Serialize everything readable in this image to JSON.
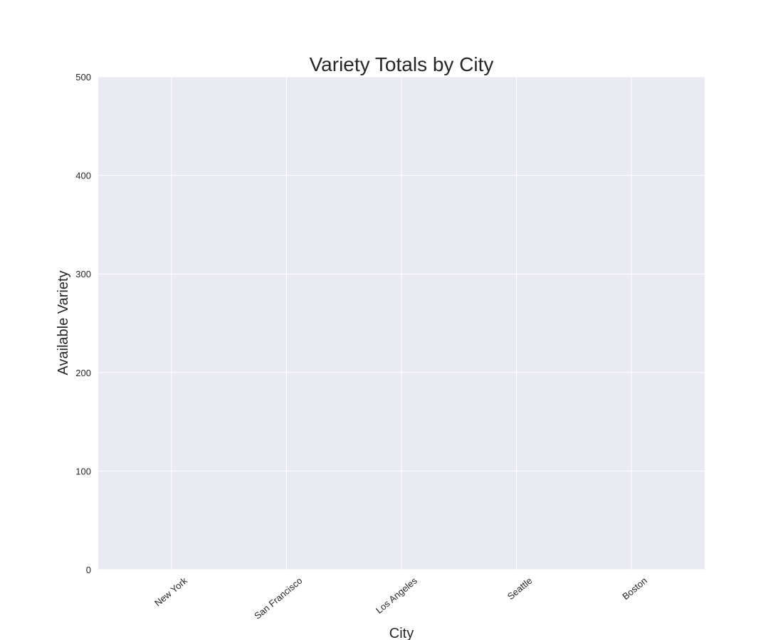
{
  "chart_data": {
    "type": "bar",
    "title": "Variety Totals by City",
    "xlabel": "City",
    "ylabel": "Available Variety",
    "categories": [
      "New York",
      "San Francisco",
      "Los Angeles",
      "Seattle",
      "Boston"
    ],
    "values": [
      0,
      0,
      0,
      0,
      0
    ],
    "ylim": [
      0,
      500
    ],
    "yticks": [
      0,
      100,
      200,
      300,
      400,
      500
    ],
    "grid": true,
    "legend": "none",
    "colors": {
      "plot_background": "#eaeaf2",
      "grid": "#ffffff",
      "text": "#262626",
      "bar": "#4c72b0"
    }
  }
}
